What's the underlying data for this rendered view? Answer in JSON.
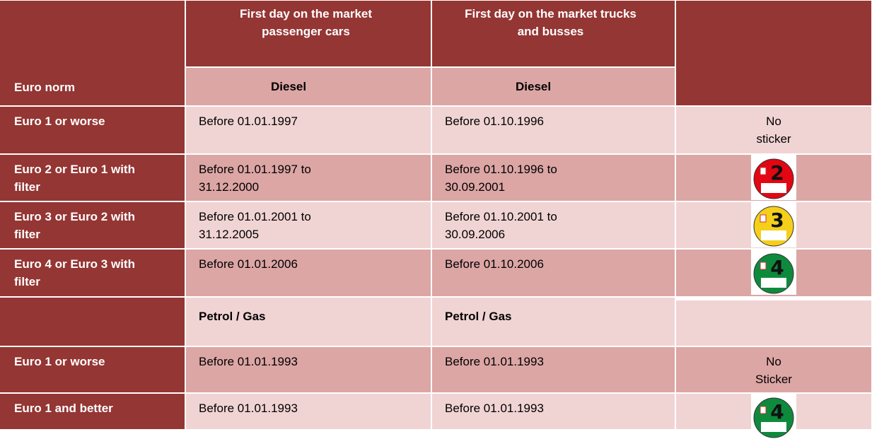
{
  "header": {
    "euro_norm": "Euro norm",
    "cars": "First day on the market passenger cars",
    "trucks": "First day on the market trucks and busses",
    "cars_fuel": "Diesel",
    "trucks_fuel": "Diesel"
  },
  "rows": [
    {
      "norm": "Euro 1 or worse",
      "cars": "Before 01.01.1997",
      "trucks": "Before 01.10.1996",
      "sticker": "No sticker"
    },
    {
      "norm": "Euro 2 or Euro 1 with filter",
      "cars": "Before 01.01.1997 to 31.12.2000",
      "trucks": "Before 01.10.1996 to 30.09.2001",
      "sticker": {
        "number": "2",
        "color": "#e30613"
      }
    },
    {
      "norm": "Euro 3 or Euro 2 with filter",
      "cars": "Before 01.01.2001 to 31.12.2005",
      "trucks": "Before 01.10.2001 to 30.09.2006",
      "sticker": {
        "number": "3",
        "color": "#f5cf1a"
      }
    },
    {
      "norm": "Euro 4 or Euro 3 with filter",
      "cars": "Before 01.01.2006",
      "trucks": "Before 01.10.2006",
      "sticker": {
        "number": "4",
        "color": "#0e8a3c"
      }
    }
  ],
  "petrol": {
    "cars_fuel": "Petrol / Gas",
    "trucks_fuel": "Petrol / Gas"
  },
  "petrol_rows": [
    {
      "norm": "Euro 1 or worse",
      "cars": "Before 01.01.1993",
      "trucks": "Before 01.01.1993",
      "sticker": "No Sticker"
    },
    {
      "norm": "Euro 1 and better",
      "cars": "Before 01.01.1993",
      "trucks": "Before 01.01.1993",
      "sticker": {
        "number": "4",
        "color": "#0e8a3c"
      }
    }
  ]
}
